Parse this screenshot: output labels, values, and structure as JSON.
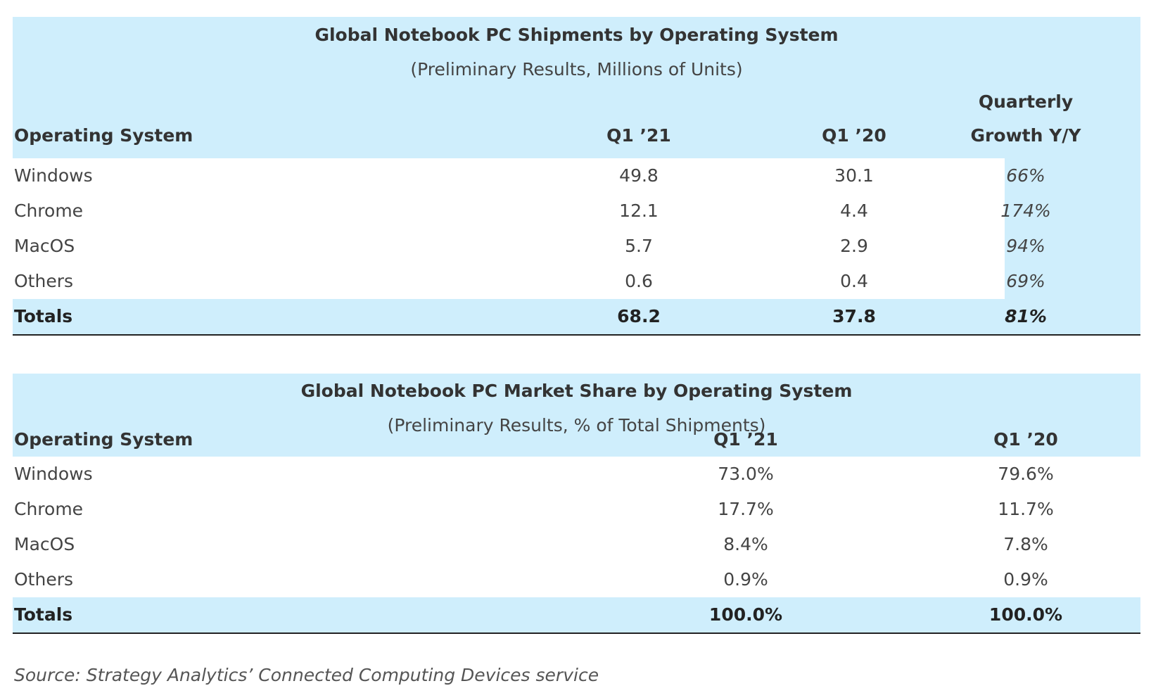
{
  "table1": {
    "title": "Global Notebook PC Shipments by Operating System",
    "subtitle": "(Preliminary Results, Millions of Units)",
    "headers": {
      "os": "Operating System",
      "q1_21": "Q1 ’21",
      "q1_20": "Q1 ’20",
      "growth_line1": "Quarterly",
      "growth_line2": "Growth Y/Y"
    },
    "rows": [
      {
        "os": "Windows",
        "q1_21": "49.8",
        "q1_20": "30.1",
        "growth": "66%"
      },
      {
        "os": "Chrome",
        "q1_21": "12.1",
        "q1_20": "4.4",
        "growth": "174%"
      },
      {
        "os": "MacOS",
        "q1_21": "5.7",
        "q1_20": "2.9",
        "growth": "94%"
      },
      {
        "os": "Others",
        "q1_21": "0.6",
        "q1_20": "0.4",
        "growth": "69%"
      }
    ],
    "totals": {
      "os": "Totals",
      "q1_21": "68.2",
      "q1_20": "37.8",
      "growth": "81%"
    }
  },
  "table2": {
    "title": "Global Notebook PC Market Share by Operating System",
    "subtitle": "(Preliminary Results, % of Total Shipments)",
    "headers": {
      "os": "Operating System",
      "q1_21": "Q1 ’21",
      "q1_20": "Q1 ’20"
    },
    "rows": [
      {
        "os": "Windows",
        "q1_21": "73.0%",
        "q1_20": "79.6%"
      },
      {
        "os": "Chrome",
        "q1_21": "17.7%",
        "q1_20": "11.7%"
      },
      {
        "os": "MacOS",
        "q1_21": "8.4%",
        "q1_20": "7.8%"
      },
      {
        "os": "Others",
        "q1_21": "0.9%",
        "q1_20": "0.9%"
      }
    ],
    "totals": {
      "os": "Totals",
      "q1_21": "100.0%",
      "q1_20": "100.0%"
    }
  },
  "source": "Source: Strategy Analytics’ Connected Computing Devices service",
  "colors": {
    "header_bg": "#cfeefc",
    "text": "#333333"
  },
  "chart_data": [
    {
      "type": "table",
      "title": "Global Notebook PC Shipments by Operating System",
      "columns": [
        "Operating System",
        "Q1 ’21",
        "Q1 ’20",
        "Quarterly Growth Y/Y"
      ],
      "rows": [
        [
          "Windows",
          49.8,
          30.1,
          "66%"
        ],
        [
          "Chrome",
          12.1,
          4.4,
          "174%"
        ],
        [
          "MacOS",
          5.7,
          2.9,
          "94%"
        ],
        [
          "Others",
          0.6,
          0.4,
          "69%"
        ],
        [
          "Totals",
          68.2,
          37.8,
          "81%"
        ]
      ]
    },
    {
      "type": "table",
      "title": "Global Notebook PC Market Share by Operating System",
      "columns": [
        "Operating System",
        "Q1 ’21",
        "Q1 ’20"
      ],
      "rows": [
        [
          "Windows",
          "73.0%",
          "79.6%"
        ],
        [
          "Chrome",
          "17.7%",
          "11.7%"
        ],
        [
          "MacOS",
          "8.4%",
          "7.8%"
        ],
        [
          "Others",
          "0.9%",
          "0.9%"
        ],
        [
          "Totals",
          "100.0%",
          "100.0%"
        ]
      ]
    }
  ]
}
